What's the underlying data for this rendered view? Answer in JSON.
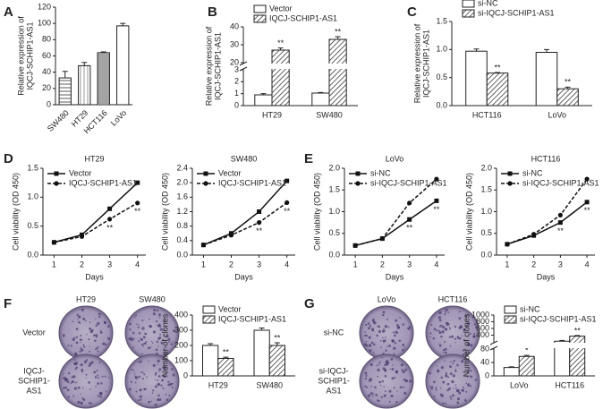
{
  "chart_data": [
    {
      "type": "bar",
      "label": "A",
      "ylabel": [
        "Relative expression of",
        "IQCJ-SCHIP1-AS1"
      ],
      "categories": [
        "SW480",
        "HT29",
        "HCT116",
        "LoVo"
      ],
      "values": [
        33,
        48,
        64,
        97
      ],
      "errors": [
        8,
        4,
        1,
        3
      ],
      "patterns": [
        "hlines",
        "vlines",
        "hlines-dense",
        "none"
      ],
      "color": "#222",
      "ylim": [
        0,
        120
      ],
      "yticks": [
        0,
        20,
        40,
        60,
        80,
        100,
        120
      ],
      "rotate_xticks": true
    },
    {
      "type": "bar",
      "label": "B",
      "ylabel": [
        "Relative expression of",
        "IQCJ-SCHIP1-AS1"
      ],
      "categories": [
        "HT29",
        "SW480"
      ],
      "series": [
        {
          "name": "Vector",
          "color": "#222",
          "pattern": "none",
          "values": [
            0.9,
            1.05
          ],
          "errors": [
            0.1,
            0.05
          ]
        },
        {
          "name": "IQCJ-SCHIP1-AS1",
          "color": "#222",
          "pattern": "diagonal",
          "values": [
            27,
            33
          ],
          "errors": [
            1.2,
            1.5
          ],
          "labels": [
            "**",
            "**"
          ]
        }
      ],
      "ylim": [
        0,
        40
      ],
      "ybreak": [
        3,
        20
      ],
      "yticks": [
        0,
        1,
        2,
        3,
        20,
        30,
        40
      ],
      "legend": "upper left"
    },
    {
      "type": "bar",
      "label": "C",
      "ylabel": [
        "Relative expression of",
        "IQCJ-SCHIP1-AS1"
      ],
      "categories": [
        "HCT116",
        "LoVo"
      ],
      "series": [
        {
          "name": "si-NC",
          "color": "#222",
          "pattern": "none",
          "values": [
            0.97,
            0.95
          ],
          "errors": [
            0.04,
            0.05
          ]
        },
        {
          "name": "si-IQCJ-SCHIP1-AS1",
          "color": "#222",
          "pattern": "diagonal",
          "values": [
            0.58,
            0.3
          ],
          "errors": [
            0.01,
            0.03
          ],
          "labels": [
            "**",
            "**"
          ]
        }
      ],
      "ylim": [
        0,
        1.5
      ],
      "yticks": [
        {
          "value": 0,
          "label": "0.0"
        },
        0.5,
        {
          "value": 1,
          "label": "1.0"
        },
        1.5
      ],
      "legend": "upper left"
    },
    {
      "type": "line",
      "label": "D",
      "title": "HT29",
      "xlabel": "Days",
      "ylabel": [
        "Cell viability (OD 450)"
      ],
      "x": [
        1,
        2,
        3,
        4
      ],
      "series": [
        {
          "name": "Vector",
          "color": "#111",
          "marker": "square",
          "dashed": false,
          "values": [
            0.22,
            0.35,
            0.8,
            1.25
          ]
        },
        {
          "name": "IQCJ-SCHIP1-AS1",
          "color": "#111",
          "marker": "circle",
          "dashed": true,
          "values": [
            0.22,
            0.32,
            0.62,
            0.9
          ],
          "labels": [
            null,
            null,
            "**",
            "**"
          ]
        }
      ],
      "xlim": [
        0.6,
        4.3
      ],
      "xticks": [
        1,
        2,
        3,
        4
      ],
      "ylim": [
        0,
        1.5
      ],
      "yticks": [
        {
          "value": 0,
          "label": "0.0"
        },
        0.5,
        {
          "value": 1,
          "label": "1.0"
        },
        1.5
      ],
      "legend": "upper left"
    },
    {
      "type": "line",
      "title": "SW480",
      "xlabel": "Days",
      "ylabel": [
        "Cell viability (OD 450)"
      ],
      "x": [
        1,
        2,
        3,
        4
      ],
      "series": [
        {
          "name": "Vector",
          "color": "#111",
          "marker": "square",
          "dashed": false,
          "values": [
            0.28,
            0.6,
            1.2,
            2.05
          ]
        },
        {
          "name": "IQCJ-SCHIP1-AS1",
          "color": "#111",
          "marker": "circle",
          "dashed": true,
          "values": [
            0.28,
            0.55,
            0.9,
            1.45
          ],
          "labels": [
            null,
            null,
            "**",
            "**"
          ]
        }
      ],
      "xlim": [
        0.6,
        4.3
      ],
      "xticks": [
        1,
        2,
        3,
        4
      ],
      "ylim": [
        0,
        2.4
      ],
      "yticks": [
        {
          "value": 0,
          "label": "0.0"
        },
        0.4,
        0.8,
        1.2,
        1.6,
        {
          "value": 2,
          "label": "2.0"
        },
        2.4
      ],
      "legend": "upper left"
    },
    {
      "type": "line",
      "label": "E",
      "title": "LoVo",
      "xlabel": "Days",
      "ylabel": [
        "Cell viability (OD 450)"
      ],
      "x": [
        1,
        2,
        3,
        4
      ],
      "series": [
        {
          "name": "si-NC",
          "color": "#111",
          "marker": "square",
          "dashed": false,
          "values": [
            0.22,
            0.38,
            0.82,
            1.25
          ],
          "labels": [
            null,
            null,
            "**",
            "**"
          ]
        },
        {
          "name": "si-IQCJ-SCHIP1-AS1",
          "color": "#111",
          "marker": "circle",
          "dashed": true,
          "values": [
            0.22,
            0.38,
            1.2,
            1.75
          ]
        }
      ],
      "xlim": [
        0.6,
        4.3
      ],
      "xticks": [
        1,
        2,
        3,
        4
      ],
      "ylim": [
        0,
        2
      ],
      "yticks": [
        {
          "value": 0,
          "label": "0.0"
        },
        0.5,
        {
          "value": 1,
          "label": "1.0"
        },
        1.5,
        {
          "value": 2,
          "label": "2.0"
        }
      ],
      "legend": "upper left"
    },
    {
      "type": "line",
      "title": "HCT116",
      "xlabel": "Days",
      "ylabel": [
        "Cell viability (OD 450)"
      ],
      "x": [
        1,
        2,
        3,
        4
      ],
      "series": [
        {
          "name": "si-NC",
          "color": "#111",
          "marker": "square",
          "dashed": false,
          "values": [
            0.25,
            0.45,
            0.75,
            1.22
          ],
          "labels": [
            null,
            null,
            "**",
            "**"
          ]
        },
        {
          "name": "si-IQCJ-SCHIP1-AS1",
          "color": "#111",
          "marker": "circle",
          "dashed": true,
          "values": [
            0.25,
            0.48,
            0.92,
            1.75
          ]
        }
      ],
      "xlim": [
        0.6,
        4.3
      ],
      "xticks": [
        1,
        2,
        3,
        4
      ],
      "ylim": [
        0,
        2
      ],
      "yticks": [
        {
          "value": 0,
          "label": "0.0"
        },
        0.5,
        {
          "value": 1,
          "label": "1.0"
        },
        1.5,
        {
          "value": 2,
          "label": "2.0"
        }
      ],
      "legend": "upper left"
    },
    {
      "type": "dishes",
      "label": "F",
      "columns": [
        "HT29",
        "SW480"
      ],
      "rows": [
        [
          "Vector"
        ],
        [
          "IQCJ-",
          "SCHIP1-",
          "AS1"
        ]
      ]
    },
    {
      "type": "bar",
      "ylabel": [
        "Number of clones"
      ],
      "categories": [
        "HT29",
        "SW480"
      ],
      "series": [
        {
          "name": "Vector",
          "color": "#222",
          "pattern": "none",
          "values": [
            200,
            300
          ],
          "errors": [
            12,
            15
          ]
        },
        {
          "name": "IQCJ-SCHIP1-AS1",
          "color": "#222",
          "pattern": "diagonal",
          "values": [
            115,
            200
          ],
          "errors": [
            8,
            18
          ],
          "labels": [
            "**",
            "**"
          ]
        }
      ],
      "ylim": [
        0,
        400
      ],
      "yticks": [
        0,
        100,
        200,
        300,
        400
      ],
      "legend": "upper left"
    },
    {
      "type": "dishes",
      "label": "G",
      "columns": [
        "LoVo",
        "HCT116"
      ],
      "rows": [
        [
          "si-NC"
        ],
        [
          "si-IQCJ-",
          "SCHIP1-",
          "AS1"
        ]
      ]
    },
    {
      "type": "bar",
      "ylabel": [
        "Number of clones"
      ],
      "categories": [
        "LoVo",
        "HCT116"
      ],
      "series": [
        {
          "name": "si-NC",
          "color": "#222",
          "pattern": "none",
          "values": [
            25,
            220
          ],
          "errors": [
            2,
            25
          ]
        },
        {
          "name": "si-IQCJ-SCHIP1-AS1",
          "color": "#222",
          "pattern": "diagonal",
          "values": [
            58,
            370
          ],
          "errors": [
            3,
            20
          ],
          "labels": [
            "*",
            "**"
          ]
        }
      ],
      "ylim": [
        0,
        1000
      ],
      "ybreak": [
        80,
        200
      ],
      "yticks": [
        0,
        40,
        80,
        400,
        600,
        800,
        1000
      ],
      "legend": "upper left"
    }
  ]
}
